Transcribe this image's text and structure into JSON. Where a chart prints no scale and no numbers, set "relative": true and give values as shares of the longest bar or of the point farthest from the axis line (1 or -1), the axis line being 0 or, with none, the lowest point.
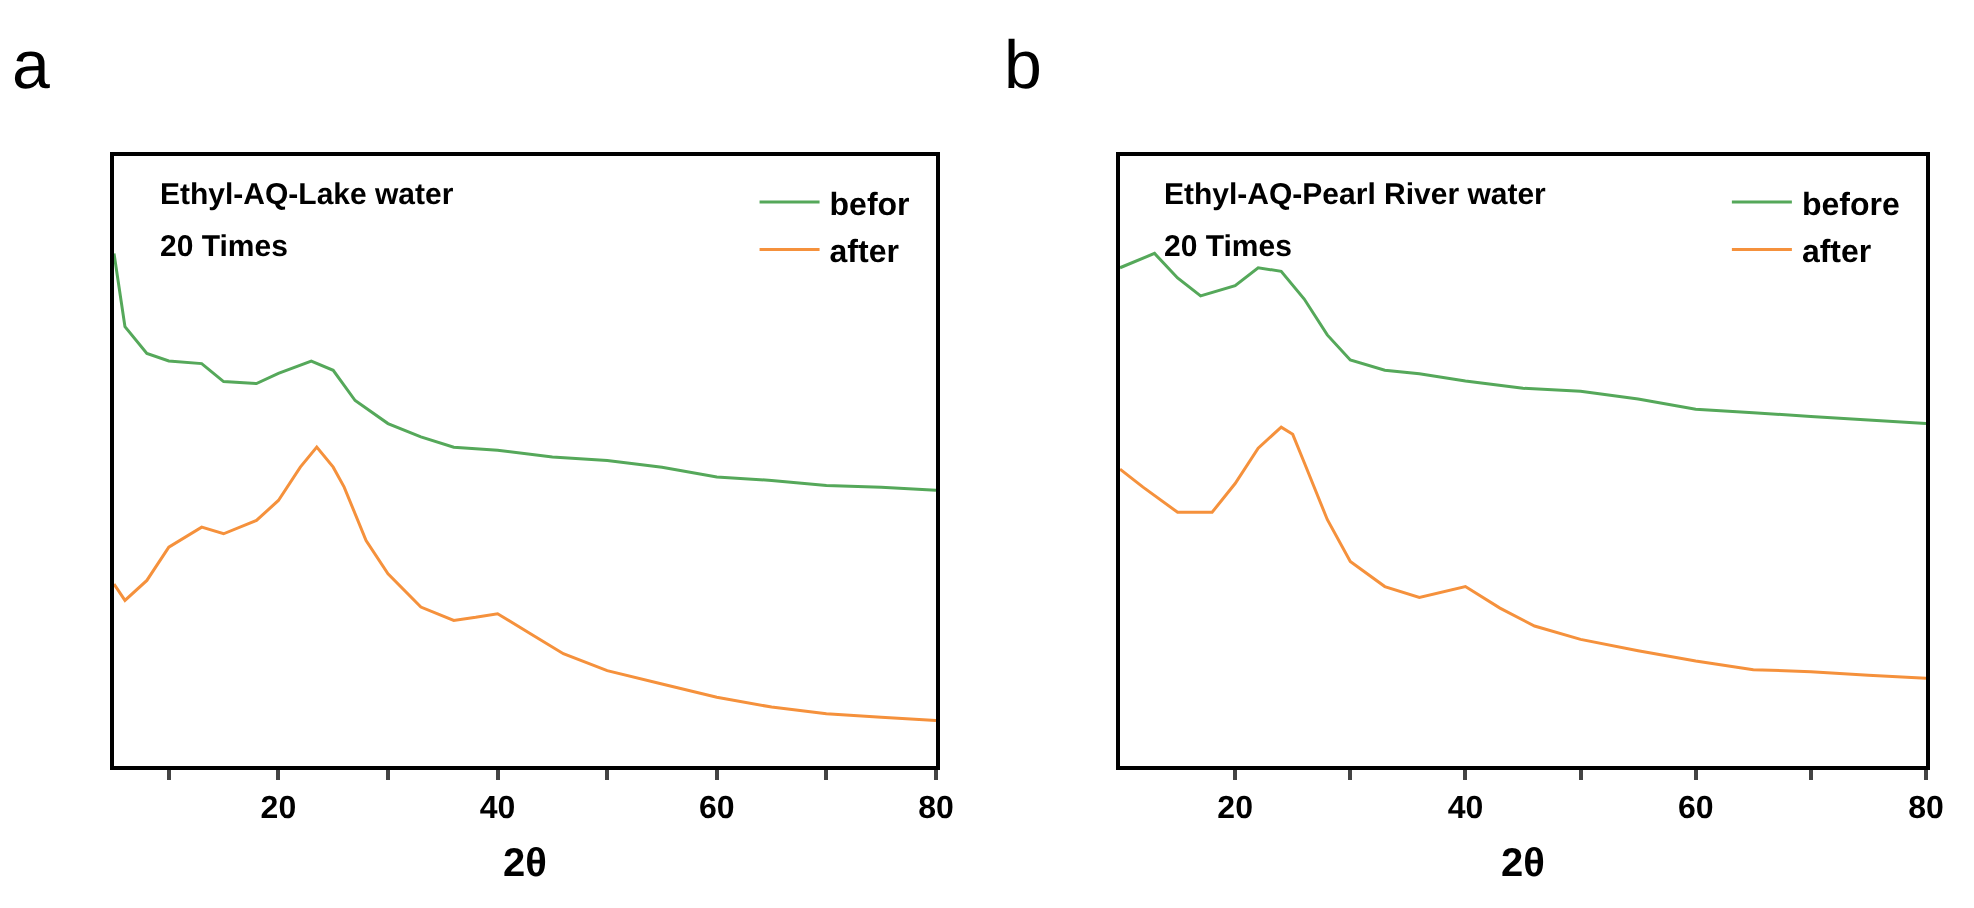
{
  "chart_data": [
    {
      "type": "line",
      "relative": true,
      "xlabel": "2θ",
      "xlim": [
        5,
        80
      ],
      "xticks": [
        {
          "value": 10,
          "label": null
        },
        20,
        {
          "value": 30,
          "label": null
        },
        40,
        {
          "value": 50,
          "label": null
        },
        60,
        {
          "value": 70,
          "label": null
        },
        80
      ],
      "tick_labels": "x",
      "legend": "top right",
      "grid": false,
      "annotations": [
        "a",
        "Ethyl-AQ-Lake water",
        "20 Times"
      ],
      "series": [
        {
          "name": "befor",
          "color": "#55a85a",
          "x": [
            5,
            6,
            8,
            10,
            13,
            15,
            18,
            20,
            23,
            25,
            27,
            30,
            33,
            36,
            40,
            45,
            50,
            55,
            60,
            65,
            70,
            75,
            80
          ],
          "values": [
            1.0,
            0.857,
            0.805,
            0.79,
            0.785,
            0.75,
            0.746,
            0.766,
            0.79,
            0.772,
            0.713,
            0.668,
            0.642,
            0.622,
            0.616,
            0.603,
            0.596,
            0.583,
            0.564,
            0.557,
            0.547,
            0.544,
            0.538
          ]
        },
        {
          "name": "after",
          "color": "#f5913c",
          "x": [
            5,
            6,
            8,
            10,
            13,
            15,
            18,
            20,
            22,
            23.5,
            25,
            26,
            28,
            30,
            33,
            36,
            38,
            40,
            43,
            46,
            50,
            55,
            60,
            65,
            70,
            75,
            80
          ],
          "values": [
            0.355,
            0.323,
            0.362,
            0.427,
            0.466,
            0.453,
            0.479,
            0.518,
            0.583,
            0.622,
            0.583,
            0.544,
            0.44,
            0.375,
            0.31,
            0.284,
            0.29,
            0.297,
            0.258,
            0.219,
            0.186,
            0.16,
            0.134,
            0.115,
            0.102,
            0.095,
            0.089
          ]
        }
      ]
    },
    {
      "type": "line",
      "relative": true,
      "xlabel": "2θ",
      "xlim": [
        10,
        80
      ],
      "xticks": [
        20,
        {
          "value": 30,
          "label": null
        },
        40,
        {
          "value": 50,
          "label": null
        },
        60,
        {
          "value": 70,
          "label": null
        },
        80
      ],
      "tick_labels": "x",
      "legend": "top right",
      "grid": false,
      "annotations": [
        "b",
        "Ethyl-AQ-Pearl River water",
        "20 Times"
      ],
      "series": [
        {
          "name": "before",
          "color": "#55a85a",
          "x": [
            10,
            13,
            15,
            17,
            20,
            22,
            24,
            26,
            28,
            30,
            33,
            36,
            40,
            45,
            50,
            55,
            60,
            65,
            70,
            75,
            80
          ],
          "values": [
            0.972,
            1.0,
            0.952,
            0.917,
            0.937,
            0.972,
            0.965,
            0.911,
            0.841,
            0.792,
            0.772,
            0.765,
            0.751,
            0.737,
            0.731,
            0.716,
            0.696,
            0.689,
            0.682,
            0.675,
            0.668
          ]
        },
        {
          "name": "after",
          "color": "#f5913c",
          "x": [
            10,
            12,
            15,
            18,
            20,
            22,
            24,
            25,
            26,
            28,
            30,
            33,
            36,
            40,
            43,
            46,
            50,
            55,
            60,
            65,
            70,
            75,
            80
          ],
          "values": [
            0.579,
            0.544,
            0.495,
            0.495,
            0.551,
            0.62,
            0.661,
            0.647,
            0.592,
            0.481,
            0.399,
            0.35,
            0.329,
            0.35,
            0.308,
            0.273,
            0.247,
            0.225,
            0.205,
            0.188,
            0.184,
            0.177,
            0.171
          ]
        }
      ]
    }
  ]
}
